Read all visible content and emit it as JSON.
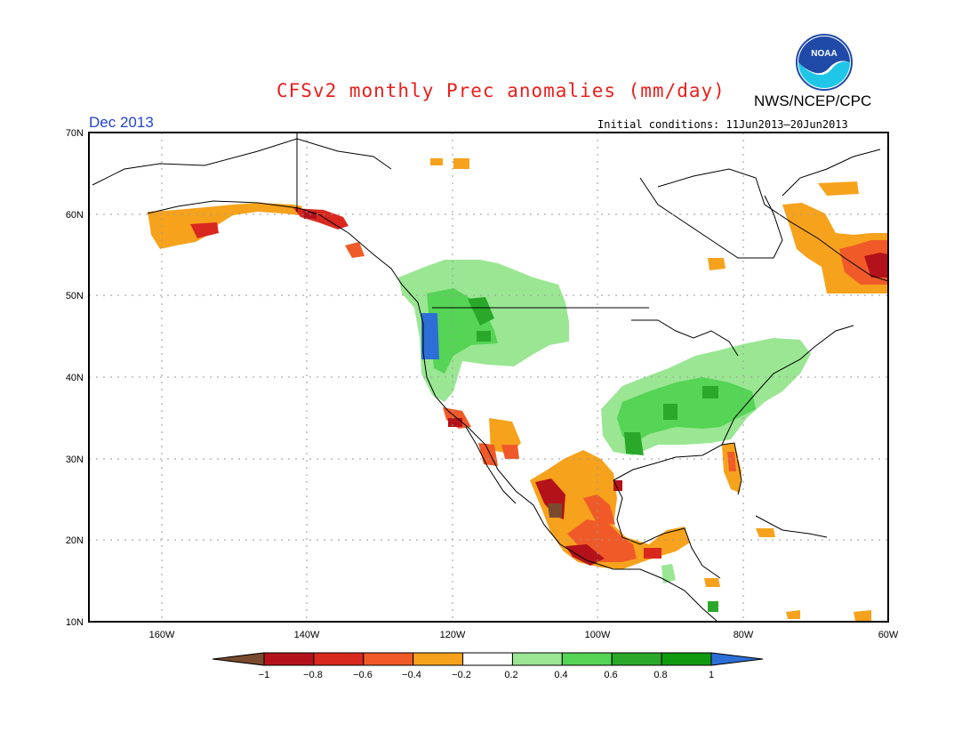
{
  "title": "CFSv2 monthly Prec anomalies (mm/day)",
  "agency": "NWS/NCEP/CPC",
  "logo_text": "NOAA",
  "target_month": "Dec 2013",
  "initial_conditions": "Initial conditions: 11Jun2013–20Jun2013",
  "map": {
    "lon_range": [
      -170,
      -60
    ],
    "lat_range": [
      10,
      70
    ],
    "lon_ticks": [
      "160W",
      "140W",
      "120W",
      "100W",
      "80W",
      "60W"
    ],
    "lat_ticks": [
      "10N",
      "20N",
      "30N",
      "40N",
      "50N",
      "60N",
      "70N"
    ],
    "grid": "dotted"
  },
  "colorbar": {
    "labels": [
      "−1",
      "−0.8",
      "−0.6",
      "−0.4",
      "−0.2",
      "0.2",
      "0.4",
      "0.6",
      "0.8",
      "1"
    ],
    "colors": [
      "#7a4a2e",
      "#b4121a",
      "#d9281e",
      "#f05a28",
      "#f7a21c",
      "#ffffff",
      "#9ae693",
      "#55d455",
      "#2aa82a",
      "#109a10",
      "#2d6fd6"
    ]
  }
}
